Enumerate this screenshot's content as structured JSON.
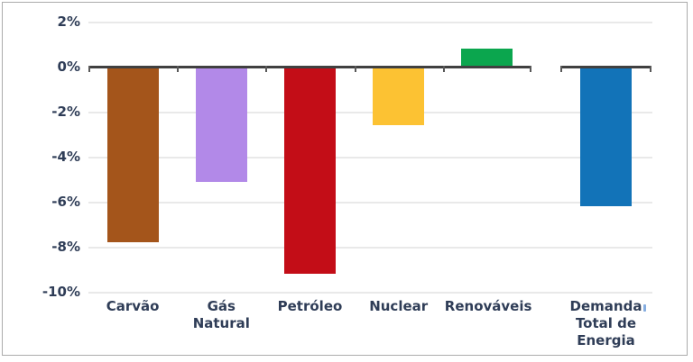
{
  "chart_data": {
    "type": "bar",
    "title": "",
    "xlabel": "",
    "ylabel": "",
    "ylim": [
      -10,
      2
    ],
    "grid": true,
    "legend": null,
    "yticks": [
      {
        "label": "2%",
        "value": 2
      },
      {
        "label": "0%",
        "value": 0
      },
      {
        "label": "-2%",
        "value": -2
      },
      {
        "label": "-4%",
        "value": -4
      },
      {
        "label": "-6%",
        "value": -6
      },
      {
        "label": "-8%",
        "value": -8
      },
      {
        "label": "-10%",
        "value": -10
      }
    ],
    "groups": [
      {
        "name": "energy-sources",
        "categories": [
          "Carvão",
          "Gás Natural",
          "Petróleo",
          "Nuclear",
          "Renováveis"
        ],
        "values": [
          -7.8,
          -5.1,
          -9.2,
          -2.6,
          0.8
        ],
        "colors": [
          "#A4551B",
          "#B289E8",
          "#C30D17",
          "#FCC233",
          "#0BA64E"
        ]
      },
      {
        "name": "total-demand",
        "categories": [
          "Demanda Total de Energia"
        ],
        "values": [
          -6.2
        ],
        "colors": [
          "#1273B8"
        ]
      }
    ]
  },
  "colors": {
    "background": "#FFFFFF",
    "frame_border": "#ABABAB",
    "axis_line": "#404040",
    "gridline": "#E9E9E9",
    "label_text": "#2F3D57",
    "footnote_mark": "#85ADE0"
  }
}
